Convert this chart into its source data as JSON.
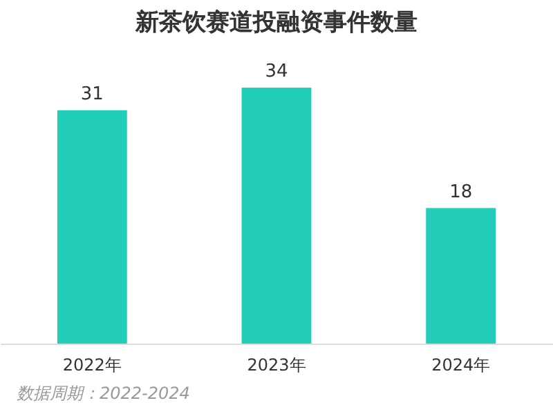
{
  "chart_data": {
    "type": "bar",
    "title": "新茶饮赛道投融资事件数量",
    "categories": [
      "2022年",
      "2023年",
      "2024年"
    ],
    "values": [
      31,
      34,
      18
    ],
    "color": "#22cdb9",
    "data_labels": true,
    "annotations": [
      "数据周期：2022-2024"
    ]
  }
}
